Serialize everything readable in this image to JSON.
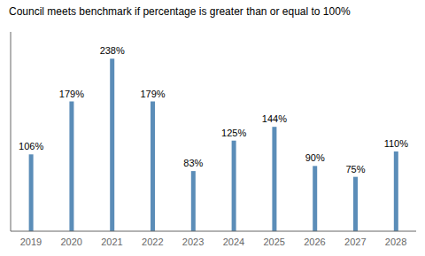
{
  "chart_data": {
    "type": "bar",
    "title": "Council meets benchmark if percentage is greater than or equal to 100%",
    "categories": [
      "2019",
      "2020",
      "2021",
      "2022",
      "2023",
      "2024",
      "2025",
      "2026",
      "2027",
      "2028"
    ],
    "values": [
      106,
      179,
      238,
      179,
      83,
      125,
      144,
      90,
      75,
      110
    ],
    "value_labels": [
      "106%",
      "179%",
      "238%",
      "179%",
      "83%",
      "125%",
      "144%",
      "90%",
      "75%",
      "110%"
    ],
    "color": "#5B8DB8",
    "ylim": [
      0,
      275
    ],
    "grid": false,
    "data_labels": true,
    "tick_labels": "x"
  }
}
